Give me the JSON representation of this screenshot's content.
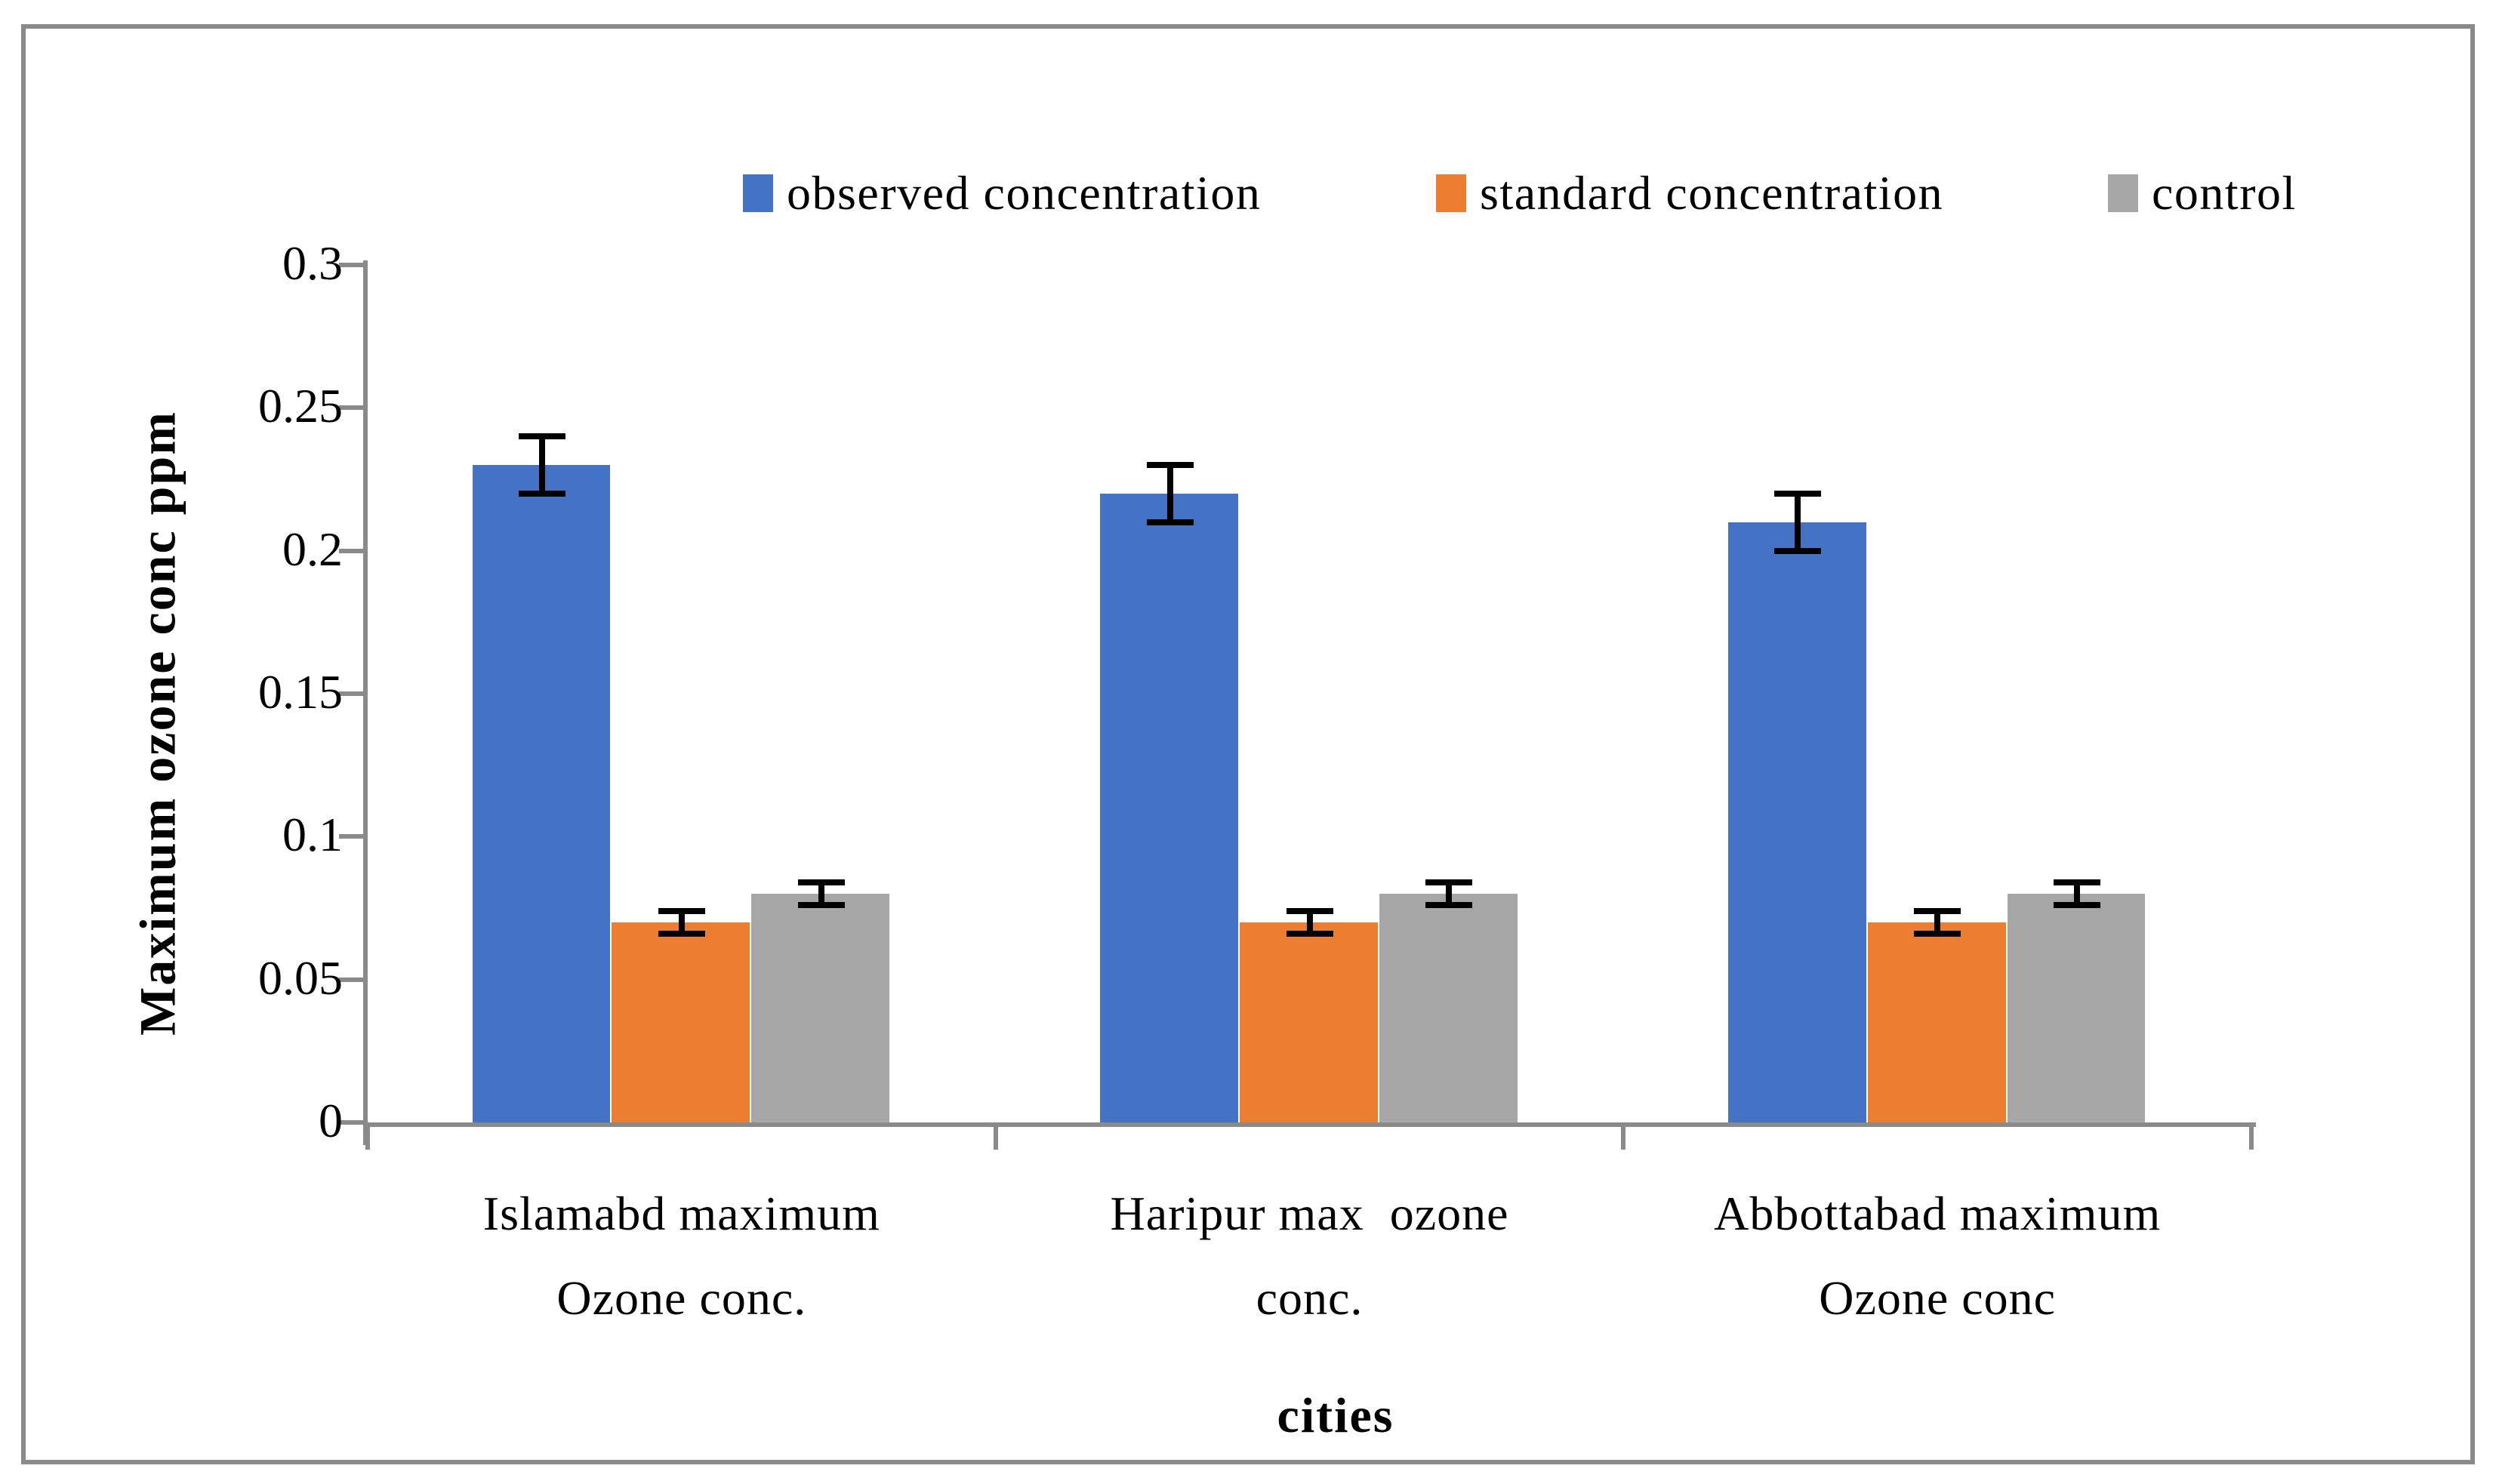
{
  "chart": {
    "background": "#FFFFFF",
    "border_color": "#8A8A8A",
    "axis_color": "#8A8A8A",
    "text_color": "#000000",
    "y_axis_title": "Maximum ozone conc ppm",
    "x_axis_title": "cities",
    "legend": {
      "position": "top",
      "items": [
        {
          "label": "observed concentration",
          "color": "#4472C4"
        },
        {
          "label": "standard concentration",
          "color": "#ED7D31"
        },
        {
          "label": "control",
          "color": "#A6A6A6"
        }
      ]
    }
  },
  "chart_data": {
    "type": "bar",
    "title": "",
    "categories": [
      "Islamabd maximum Ozone conc.",
      "Haripur max  ozone conc.",
      "Abbottabad maximum Ozone conc"
    ],
    "category_lines": [
      [
        "Islamabd maximum",
        "Ozone conc."
      ],
      [
        "Haripur max  ozone",
        "conc."
      ],
      [
        "Abbottabad maximum",
        "Ozone conc"
      ]
    ],
    "series": [
      {
        "name": "observed concentration",
        "color": "#4472C4",
        "values": [
          0.23,
          0.22,
          0.21
        ],
        "error": [
          0.01,
          0.01,
          0.01
        ]
      },
      {
        "name": "standard concentration",
        "color": "#ED7D31",
        "values": [
          0.07,
          0.07,
          0.07
        ],
        "error": [
          0.004,
          0.004,
          0.004
        ]
      },
      {
        "name": "control",
        "color": "#A6A6A6",
        "values": [
          0.08,
          0.08,
          0.08
        ],
        "error": [
          0.004,
          0.004,
          0.004
        ]
      }
    ],
    "xlabel": "cities",
    "ylabel": "Maximum ozone conc ppm",
    "ylim": [
      0,
      0.3
    ],
    "yticks": [
      0,
      0.05,
      0.1,
      0.15,
      0.2,
      0.25,
      0.3
    ],
    "ytick_labels": [
      "0",
      "0.05",
      "0.1",
      "0.15",
      "0.2",
      "0.25",
      "0.3"
    ],
    "legend_position": "top",
    "grid": false,
    "error_bars": true,
    "bar_gap_width_percent": 150
  }
}
